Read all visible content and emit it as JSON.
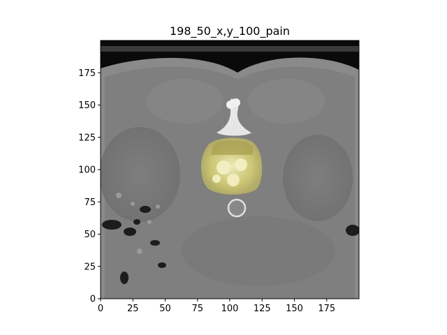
{
  "figure": {
    "title": "198_50_x,y_100_pain"
  },
  "image": {
    "description_icon": "ct-axial-slice-with-yellow-overlay",
    "overlay_color": "#e8e070"
  },
  "axes": {
    "xlim": [
      0,
      200
    ],
    "ylim": [
      0,
      200
    ],
    "x_ticks": [
      0,
      25,
      50,
      75,
      100,
      125,
      150,
      175
    ],
    "y_ticks": [
      0,
      25,
      50,
      75,
      100,
      125,
      150,
      175
    ],
    "x_tick_labels": [
      "0",
      "25",
      "50",
      "75",
      "100",
      "125",
      "150",
      "175"
    ],
    "y_tick_labels": [
      "0",
      "25",
      "50",
      "75",
      "100",
      "125",
      "150",
      "175"
    ]
  }
}
